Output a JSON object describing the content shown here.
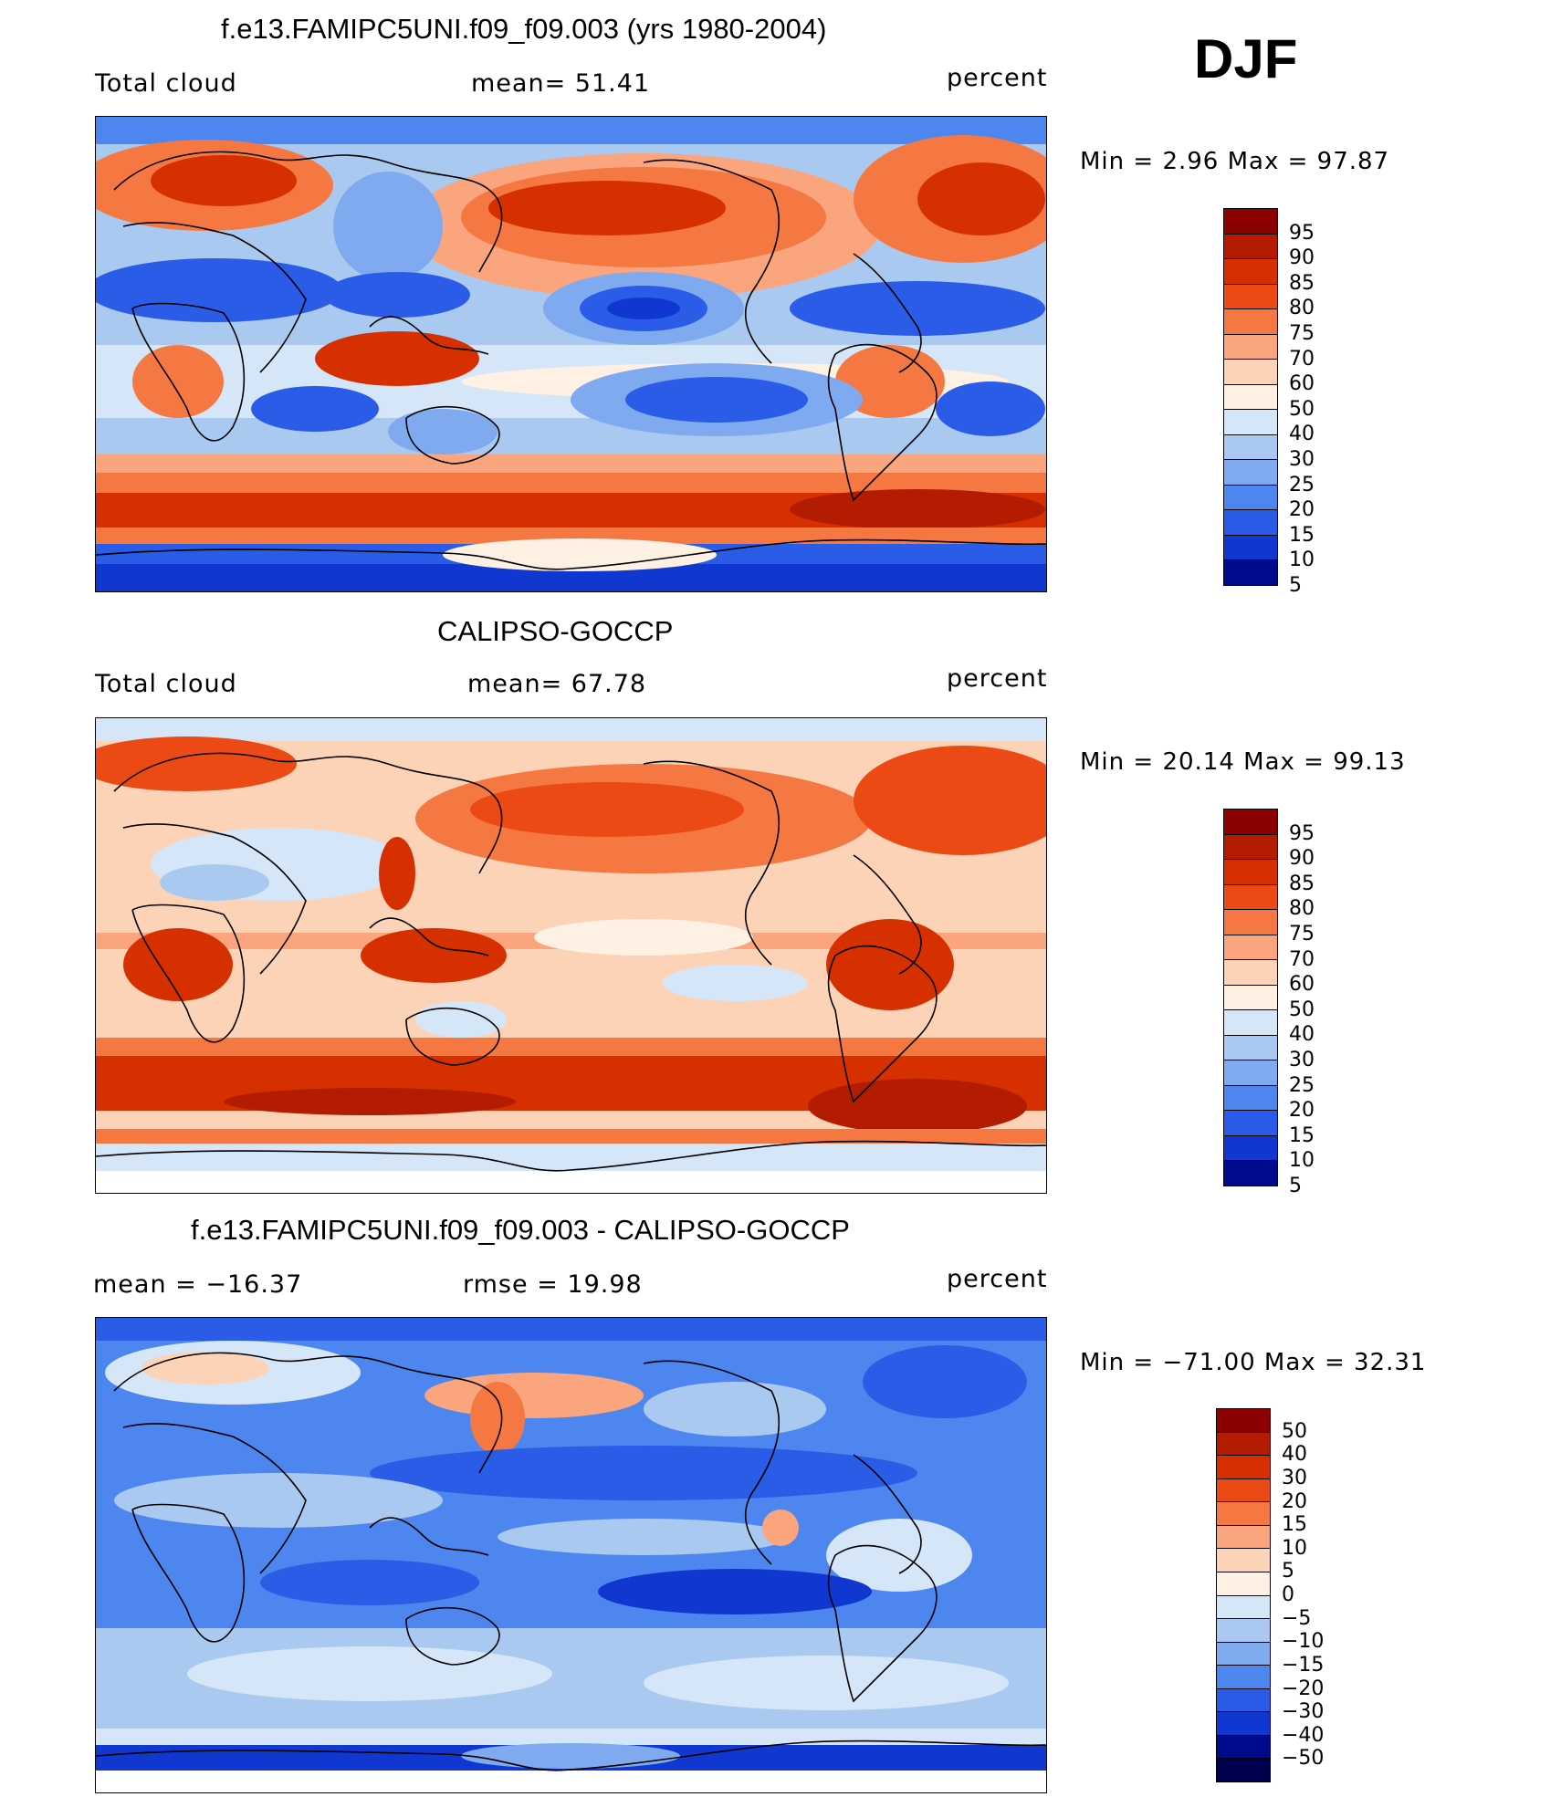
{
  "season": "DJF",
  "panels": [
    {
      "title": "f.e13.FAMIPC5UNI.f09_f09.003 (yrs 1980-2004)",
      "left_label": "Total cloud",
      "center_label": "mean=   51.41",
      "right_label": "percent",
      "minmax": "Min =    2.96  Max =    97.87",
      "colorbar_labels": [
        "95",
        "90",
        "85",
        "80",
        "75",
        "70",
        "60",
        "50",
        "40",
        "30",
        "25",
        "20",
        "15",
        "10",
        "5"
      ],
      "colorbar_colors": [
        "#8b0000",
        "#b41c00",
        "#d73000",
        "#ec4a14",
        "#f57842",
        "#fba57e",
        "#fdd3b8",
        "#fff0e4",
        "#d5e6f8",
        "#aac9f0",
        "#80aaf0",
        "#4d86ee",
        "#2a5ce8",
        "#1038d0",
        "#000a8c"
      ]
    },
    {
      "title": "CALIPSO-GOCCP",
      "left_label": "Total cloud",
      "center_label": "mean=   67.78",
      "right_label": "percent",
      "minmax": "Min =   20.14  Max =    99.13",
      "colorbar_labels": [
        "95",
        "90",
        "85",
        "80",
        "75",
        "70",
        "60",
        "50",
        "40",
        "30",
        "25",
        "20",
        "15",
        "10",
        "5"
      ],
      "colorbar_colors": [
        "#8b0000",
        "#b41c00",
        "#d73000",
        "#ec4a14",
        "#f57842",
        "#fba57e",
        "#fdd3b8",
        "#fff0e4",
        "#d5e6f8",
        "#aac9f0",
        "#80aaf0",
        "#4d86ee",
        "#2a5ce8",
        "#1038d0",
        "#000a8c"
      ]
    },
    {
      "title": "f.e13.FAMIPC5UNI.f09_f09.003 - CALIPSO-GOCCP",
      "left_label": "mean  =  −16.37",
      "center_label": "rmse  =    19.98",
      "right_label": "percent",
      "minmax": "Min  = −71.00  Max  =    32.31",
      "colorbar_labels": [
        "50",
        "40",
        "30",
        "20",
        "15",
        "10",
        "5",
        "0",
        "−5",
        "−10",
        "−15",
        "−20",
        "−30",
        "−40",
        "−50"
      ],
      "colorbar_colors": [
        "#8b0000",
        "#b41c00",
        "#d73000",
        "#ec4a14",
        "#f57842",
        "#fba57e",
        "#fdd3b8",
        "#fff0e4",
        "#d5e6f8",
        "#aac9f0",
        "#80aaf0",
        "#4d86ee",
        "#2a5ce8",
        "#1038d0",
        "#000a8c",
        "#000050"
      ]
    }
  ]
}
